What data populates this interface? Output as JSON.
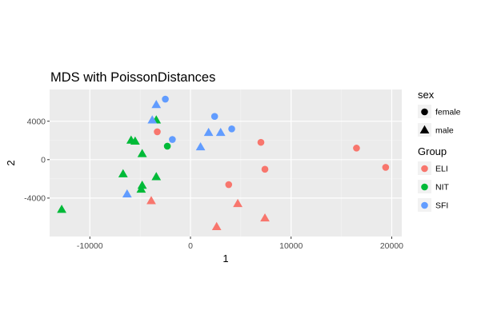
{
  "chart_data": {
    "type": "scatter",
    "title": "MDS with PoissonDistances",
    "xlabel": "1",
    "ylabel": "2",
    "xlim": [
      -14000,
      21000
    ],
    "ylim": [
      -8000,
      7300
    ],
    "x_ticks": [
      -10000,
      0,
      10000,
      20000
    ],
    "x_tick_labels": [
      "-10000",
      "0",
      "10000",
      "20000"
    ],
    "y_ticks": [
      -4000,
      0,
      4000
    ],
    "y_tick_labels": [
      "-4000",
      "0",
      "4000"
    ],
    "grid": true,
    "legend_position": "right",
    "legends": [
      {
        "title": "sex",
        "entries": [
          {
            "label": "female",
            "shape": "circle"
          },
          {
            "label": "male",
            "shape": "triangle"
          }
        ]
      },
      {
        "title": "Group",
        "entries": [
          {
            "label": "ELI",
            "color": "#F8766D"
          },
          {
            "label": "NIT",
            "color": "#00BA38"
          },
          {
            "label": "SFI",
            "color": "#619CFF"
          }
        ]
      }
    ],
    "points": [
      {
        "x": 19400,
        "y": -800,
        "group": "ELI",
        "sex": "female"
      },
      {
        "x": 16500,
        "y": 1200,
        "group": "ELI",
        "sex": "female"
      },
      {
        "x": 7000,
        "y": 1800,
        "group": "ELI",
        "sex": "female"
      },
      {
        "x": 7400,
        "y": -1000,
        "group": "ELI",
        "sex": "female"
      },
      {
        "x": 3800,
        "y": -2600,
        "group": "ELI",
        "sex": "female"
      },
      {
        "x": -3300,
        "y": 2900,
        "group": "ELI",
        "sex": "female"
      },
      {
        "x": 7400,
        "y": -6100,
        "group": "ELI",
        "sex": "male"
      },
      {
        "x": 4700,
        "y": -4600,
        "group": "ELI",
        "sex": "male"
      },
      {
        "x": 2600,
        "y": -7000,
        "group": "ELI",
        "sex": "male"
      },
      {
        "x": -3900,
        "y": -4300,
        "group": "ELI",
        "sex": "male"
      },
      {
        "x": -2300,
        "y": 1400,
        "group": "NIT",
        "sex": "female"
      },
      {
        "x": -12800,
        "y": -5200,
        "group": "NIT",
        "sex": "male"
      },
      {
        "x": -6700,
        "y": -1500,
        "group": "NIT",
        "sex": "male"
      },
      {
        "x": -5900,
        "y": 2000,
        "group": "NIT",
        "sex": "male"
      },
      {
        "x": -5500,
        "y": 1900,
        "group": "NIT",
        "sex": "male"
      },
      {
        "x": -4800,
        "y": 600,
        "group": "NIT",
        "sex": "male"
      },
      {
        "x": -4800,
        "y": -2700,
        "group": "NIT",
        "sex": "male"
      },
      {
        "x": -4900,
        "y": -3100,
        "group": "NIT",
        "sex": "male"
      },
      {
        "x": -3400,
        "y": -1800,
        "group": "NIT",
        "sex": "male"
      },
      {
        "x": -3400,
        "y": 4100,
        "group": "NIT",
        "sex": "male"
      },
      {
        "x": -2500,
        "y": 6300,
        "group": "SFI",
        "sex": "female"
      },
      {
        "x": 2400,
        "y": 4500,
        "group": "SFI",
        "sex": "female"
      },
      {
        "x": 4100,
        "y": 3200,
        "group": "SFI",
        "sex": "female"
      },
      {
        "x": -1800,
        "y": 2100,
        "group": "SFI",
        "sex": "female"
      },
      {
        "x": -3400,
        "y": 5700,
        "group": "SFI",
        "sex": "male"
      },
      {
        "x": -3800,
        "y": 4100,
        "group": "SFI",
        "sex": "male"
      },
      {
        "x": 1800,
        "y": 2800,
        "group": "SFI",
        "sex": "male"
      },
      {
        "x": 3000,
        "y": 2800,
        "group": "SFI",
        "sex": "male"
      },
      {
        "x": 1000,
        "y": 1300,
        "group": "SFI",
        "sex": "male"
      },
      {
        "x": -6300,
        "y": -3600,
        "group": "SFI",
        "sex": "male"
      }
    ]
  }
}
